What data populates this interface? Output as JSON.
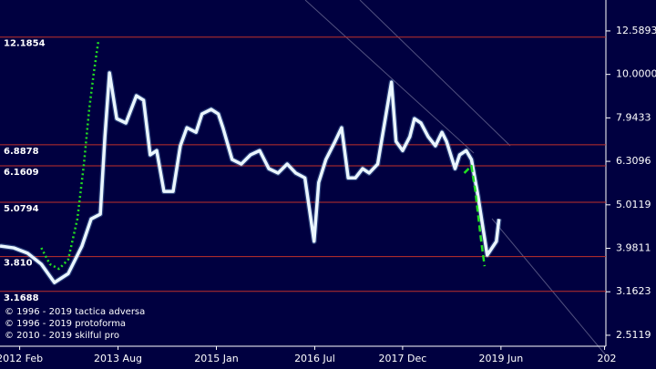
{
  "chart_data": {
    "type": "line",
    "log_scale": true,
    "xlim": [
      2011.78,
      2021.02
    ],
    "ylim": [
      2.37,
      14.83
    ],
    "yticks": [
      12.5893,
      {
        "value": 10,
        "label": "10.0000"
      },
      7.9433,
      6.3096,
      5.0119,
      3.9811,
      3.1623,
      2.5119
    ],
    "xticks": [
      {
        "value": 2012.08,
        "label": "2012 Feb"
      },
      {
        "value": 2013.58,
        "label": "2013 Aug"
      },
      {
        "value": 2015.08,
        "label": "2015 Jan"
      },
      {
        "value": 2016.58,
        "label": "2016 Jul"
      },
      {
        "value": 2017.92,
        "label": "2017 Dec"
      },
      {
        "value": 2019.42,
        "label": "2019 Jun"
      },
      {
        "value": 2021.0,
        "label": "202"
      }
    ],
    "levels": [
      12.1854,
      6.8878,
      6.1609,
      5.0794,
      {
        "value": 3.81,
        "label": "3.810"
      },
      3.1688
    ],
    "level_color": "#c0302a",
    "series": [
      {
        "color": "#eaf6ff",
        "style": "solid",
        "x": [
          2011.78,
          2011.99,
          2012.2,
          2012.41,
          2012.61,
          2012.82,
          2013.03,
          2013.17,
          2013.31,
          2013.38,
          2013.45,
          2013.56,
          2013.7,
          2013.86,
          2013.97,
          2014.07,
          2014.17,
          2014.28,
          2014.42,
          2014.53,
          2014.63,
          2014.77,
          2014.86,
          2015.0,
          2015.11,
          2015.18,
          2015.32,
          2015.46,
          2015.6,
          2015.74,
          2015.88,
          2016.02,
          2016.16,
          2016.29,
          2016.43,
          2016.57,
          2016.64,
          2016.75,
          2016.89,
          2016.99,
          2017.09,
          2017.2,
          2017.31,
          2017.41,
          2017.54,
          2017.68,
          2017.75,
          2017.82,
          2017.92,
          2018.03,
          2018.1,
          2018.2,
          2018.31,
          2018.42,
          2018.52,
          2018.59,
          2018.72,
          2018.79,
          2018.89,
          2018.97,
          2019.07,
          2019.21,
          2019.35,
          2019.39
        ],
        "values": [
          4.03,
          3.99,
          3.88,
          3.66,
          3.32,
          3.48,
          4.03,
          4.65,
          4.77,
          7.19,
          10.08,
          7.91,
          7.73,
          8.93,
          8.72,
          6.53,
          6.68,
          5.38,
          5.38,
          6.85,
          7.54,
          7.36,
          8.11,
          8.31,
          8.11,
          7.54,
          6.37,
          6.22,
          6.53,
          6.68,
          6.07,
          5.93,
          6.22,
          5.93,
          5.78,
          4.13,
          5.64,
          6.37,
          7.01,
          7.54,
          5.78,
          5.78,
          6.07,
          5.93,
          6.22,
          8.31,
          9.6,
          7.01,
          6.68,
          7.19,
          7.91,
          7.73,
          7.19,
          6.85,
          7.36,
          7.01,
          6.07,
          6.53,
          6.68,
          6.37,
          5.25,
          3.84,
          4.13,
          4.65
        ]
      },
      {
        "color": "#22dd22",
        "style": "dotted",
        "x": [
          2012.41,
          2012.54,
          2012.68,
          2012.82,
          2012.96,
          2013.06,
          2013.14,
          2013.21,
          2013.28
        ],
        "values": [
          3.99,
          3.66,
          3.57,
          3.75,
          4.65,
          6.22,
          8.31,
          10.08,
          11.93
        ]
      },
      {
        "color": "#22dd22",
        "style": "dashed",
        "x": [
          2018.86,
          2018.97,
          2019.03,
          2019.11,
          2019.17
        ],
        "values": [
          5.93,
          6.16,
          5.38,
          4.23,
          3.62
        ]
      }
    ],
    "credits": [
      "© 1996 - 2019 tactica adversa",
      "© 1996 - 2019 protoforma",
      "© 2010 - 2019 skilful pro"
    ]
  }
}
